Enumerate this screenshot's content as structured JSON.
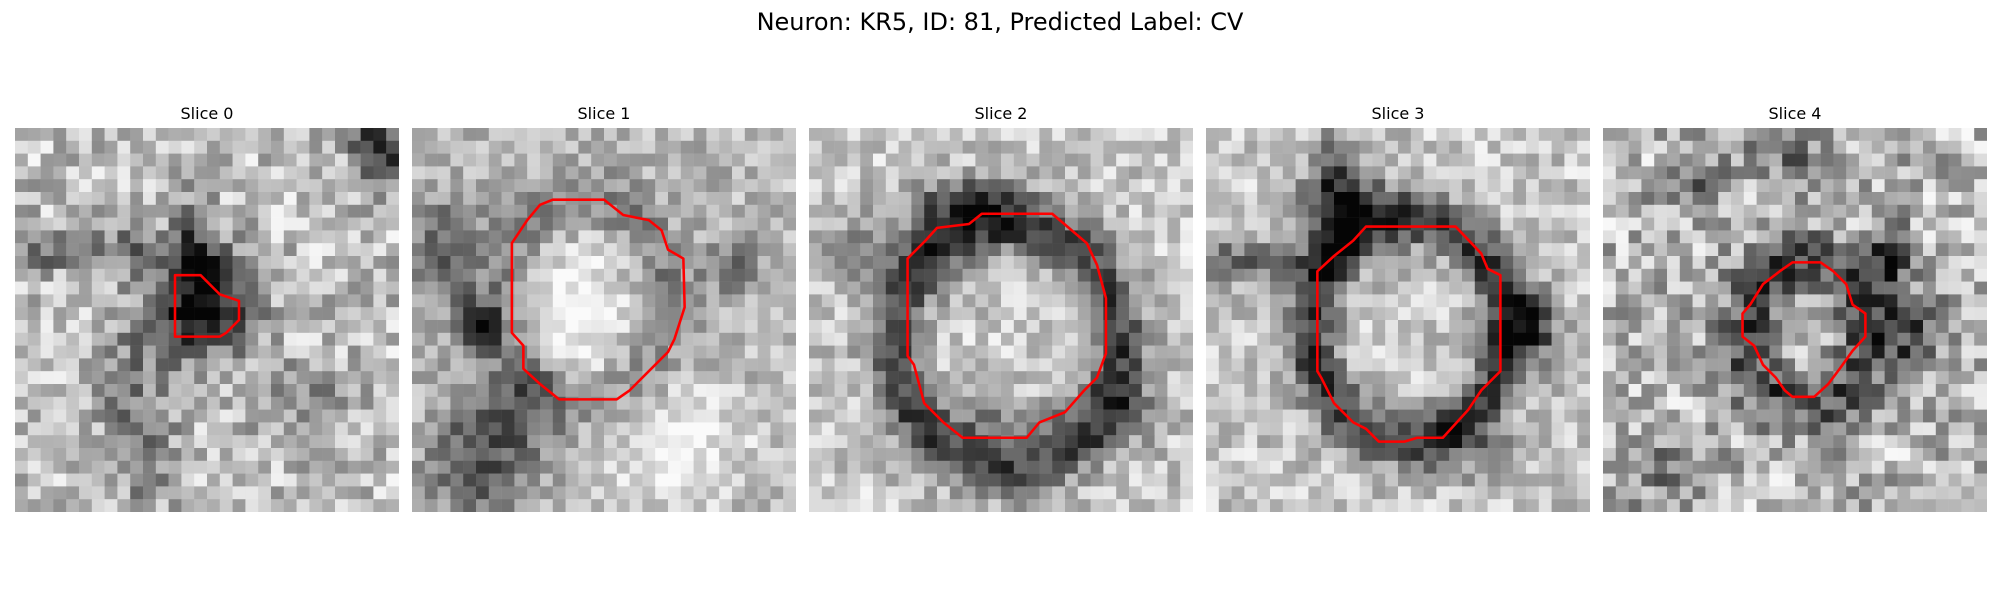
{
  "figure": {
    "title": "Neuron: KR5, ID: 81, Predicted Label: CV"
  },
  "panels": [
    {
      "title": "Slice 0",
      "contour_color": "#ff0000"
    },
    {
      "title": "Slice 1",
      "contour_color": "#ff0000"
    },
    {
      "title": "Slice 2",
      "contour_color": "#ff0000"
    },
    {
      "title": "Slice 3",
      "contour_color": "#ff0000"
    },
    {
      "title": "Slice 4",
      "contour_color": "#ff0000"
    }
  ],
  "colormap": "gray"
}
